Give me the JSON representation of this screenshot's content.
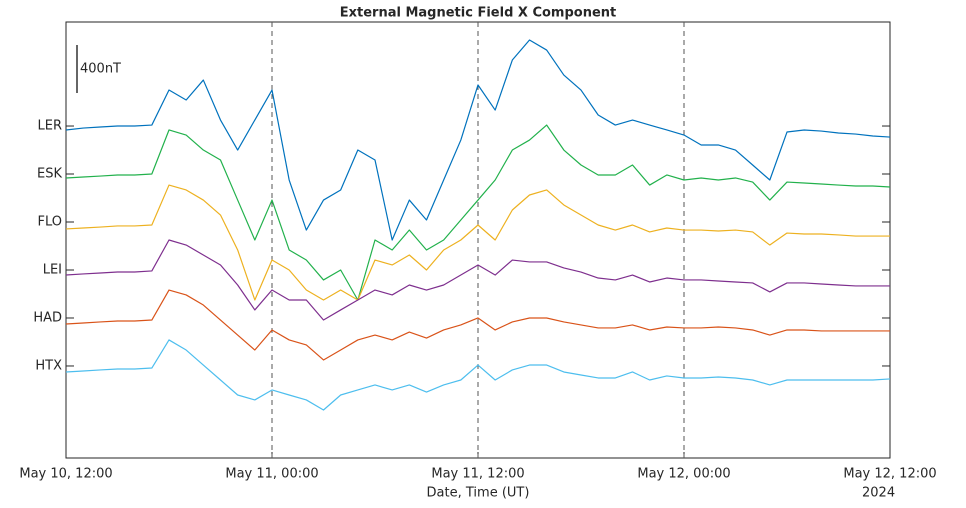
{
  "chart_data": {
    "type": "line",
    "title": "External Magnetic Field X Component",
    "xlabel": "Date, Time (UT)",
    "x_year_label": "2024",
    "scale_bar": {
      "label": "400nT",
      "value": 400
    },
    "xlim": [
      "2024-05-10T12:00",
      "2024-05-12T12:00"
    ],
    "xticks": [
      {
        "value": "2024-05-10T12:00",
        "label": "May 10, 12:00"
      },
      {
        "value": "2024-05-11T00:00",
        "label": "May 11, 00:00"
      },
      {
        "value": "2024-05-11T12:00",
        "label": "May 11, 12:00"
      },
      {
        "value": "2024-05-12T00:00",
        "label": "May 12, 00:00"
      },
      {
        "value": "2024-05-12T12:00",
        "label": "May 12, 12:00"
      }
    ],
    "ylim": [
      -767,
      2867
    ],
    "yticks": [
      {
        "value": 0,
        "label": "HTX"
      },
      {
        "value": 400,
        "label": "HAD"
      },
      {
        "value": 800,
        "label": "LEI"
      },
      {
        "value": 1200,
        "label": "FLO"
      },
      {
        "value": 1600,
        "label": "ESK"
      },
      {
        "value": 2000,
        "label": "LER"
      }
    ],
    "grid": "x-dashed",
    "x": [
      "2024-05-10T12:00",
      "2024-05-10T13:00",
      "2024-05-10T14:00",
      "2024-05-10T15:00",
      "2024-05-10T16:00",
      "2024-05-10T17:00",
      "2024-05-10T18:00",
      "2024-05-10T19:00",
      "2024-05-10T20:00",
      "2024-05-10T21:00",
      "2024-05-10T22:00",
      "2024-05-10T23:00",
      "2024-05-11T00:00",
      "2024-05-11T01:00",
      "2024-05-11T02:00",
      "2024-05-11T03:00",
      "2024-05-11T04:00",
      "2024-05-11T05:00",
      "2024-05-11T06:00",
      "2024-05-11T07:00",
      "2024-05-11T08:00",
      "2024-05-11T09:00",
      "2024-05-11T10:00",
      "2024-05-11T11:00",
      "2024-05-11T12:00",
      "2024-05-11T13:00",
      "2024-05-11T14:00",
      "2024-05-11T15:00",
      "2024-05-11T16:00",
      "2024-05-11T17:00",
      "2024-05-11T18:00",
      "2024-05-11T19:00",
      "2024-05-11T20:00",
      "2024-05-11T21:00",
      "2024-05-11T22:00",
      "2024-05-11T23:00",
      "2024-05-12T00:00",
      "2024-05-12T01:00",
      "2024-05-12T02:00",
      "2024-05-12T03:00",
      "2024-05-12T04:00",
      "2024-05-12T05:00",
      "2024-05-12T06:00",
      "2024-05-12T07:00",
      "2024-05-12T08:00",
      "2024-05-12T09:00",
      "2024-05-12T10:00",
      "2024-05-12T11:00",
      "2024-05-12T12:00"
    ],
    "series": [
      {
        "color": "#0072bd",
        "values": [
          1967,
          1983,
          1992,
          2000,
          2000,
          2008,
          2300,
          2217,
          2383,
          2050,
          1800,
          2050,
          2300,
          1550,
          1133,
          1383,
          1467,
          1800,
          1717,
          1050,
          1383,
          1217,
          1550,
          1883,
          2342,
          2133,
          2550,
          2717,
          2633,
          2425,
          2300,
          2092,
          2008,
          2050,
          2008,
          1967,
          1925,
          1842,
          1842,
          1800,
          1675,
          1550,
          1950,
          1967,
          1958,
          1942,
          1933,
          1917,
          1908
        ]
      },
      {
        "color": "#22b14c",
        "values": [
          1567,
          1575,
          1583,
          1592,
          1592,
          1600,
          1967,
          1925,
          1800,
          1717,
          1383,
          1050,
          1383,
          967,
          883,
          717,
          800,
          550,
          1050,
          967,
          1133,
          967,
          1050,
          1217,
          1383,
          1550,
          1800,
          1883,
          2008,
          1800,
          1675,
          1592,
          1592,
          1675,
          1508,
          1592,
          1550,
          1567,
          1550,
          1567,
          1533,
          1383,
          1533,
          1525,
          1517,
          1508,
          1500,
          1500,
          1492
        ]
      },
      {
        "color": "#edb120",
        "values": [
          1142,
          1150,
          1158,
          1167,
          1167,
          1175,
          1508,
          1467,
          1383,
          1258,
          967,
          550,
          883,
          800,
          633,
          550,
          633,
          550,
          883,
          842,
          925,
          800,
          967,
          1050,
          1175,
          1050,
          1300,
          1425,
          1467,
          1342,
          1258,
          1175,
          1133,
          1175,
          1117,
          1150,
          1133,
          1133,
          1125,
          1133,
          1117,
          1008,
          1108,
          1100,
          1100,
          1092,
          1083,
          1083,
          1083
        ]
      },
      {
        "color": "#7e2f8e",
        "values": [
          758,
          767,
          775,
          783,
          783,
          792,
          1050,
          1008,
          925,
          842,
          675,
          467,
          633,
          550,
          550,
          383,
          467,
          550,
          633,
          592,
          675,
          633,
          675,
          758,
          842,
          758,
          883,
          867,
          867,
          817,
          783,
          733,
          717,
          758,
          700,
          733,
          717,
          717,
          708,
          700,
          692,
          617,
          692,
          692,
          683,
          675,
          667,
          667,
          667
        ]
      },
      {
        "color": "#d95319",
        "values": [
          350,
          358,
          367,
          375,
          375,
          383,
          633,
          592,
          508,
          383,
          258,
          133,
          300,
          217,
          175,
          50,
          133,
          217,
          258,
          217,
          283,
          233,
          300,
          342,
          400,
          300,
          367,
          400,
          400,
          367,
          342,
          317,
          317,
          342,
          300,
          325,
          317,
          317,
          325,
          317,
          300,
          258,
          300,
          300,
          292,
          292,
          292,
          292,
          292
        ]
      },
      {
        "color": "#4dbeee",
        "values": [
          -50,
          -42,
          -33,
          -25,
          -25,
          -17,
          217,
          133,
          8,
          -117,
          -242,
          -283,
          -200,
          -242,
          -283,
          -367,
          -242,
          -200,
          -158,
          -200,
          -158,
          -217,
          -158,
          -117,
          8,
          -117,
          -33,
          8,
          8,
          -50,
          -75,
          -100,
          -100,
          -50,
          -117,
          -83,
          -100,
          -100,
          -92,
          -100,
          -117,
          -158,
          -117,
          -117,
          -117,
          -117,
          -117,
          -117,
          -108
        ]
      }
    ]
  }
}
